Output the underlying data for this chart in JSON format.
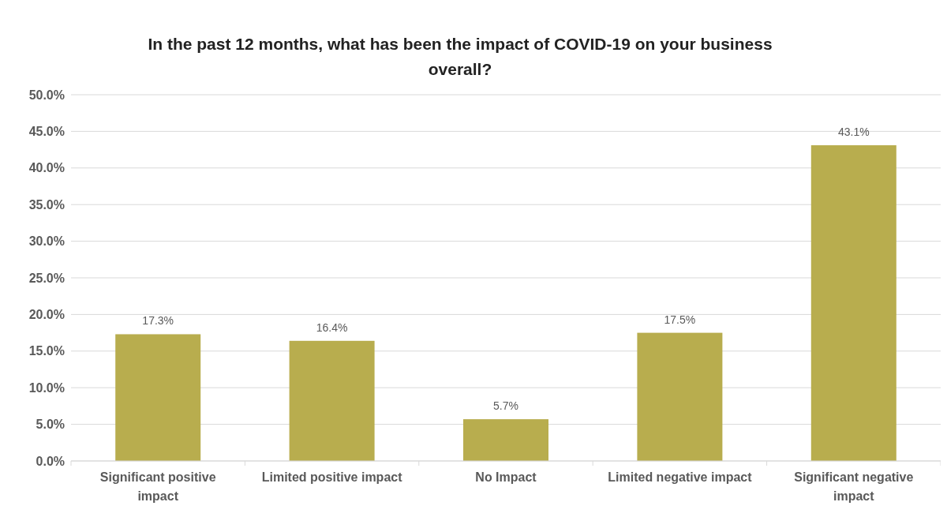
{
  "chart_data": {
    "type": "bar",
    "title": "In the past 12 months, what has been the impact of COVID-19 on your business overall?",
    "categories": [
      "Significant positive impact",
      "Limited positive impact",
      "No Impact",
      "Limited negative impact",
      "Significant negative impact"
    ],
    "values": [
      17.3,
      16.4,
      5.7,
      17.5,
      43.1
    ],
    "value_labels": [
      "17.3%",
      "16.4%",
      "5.7%",
      "17.5%",
      "43.1%"
    ],
    "color": "#b8ad4e",
    "ylim": [
      0,
      50
    ],
    "yticks": [
      {
        "value": 0,
        "label": "0.0%"
      },
      {
        "value": 5,
        "label": "5.0%"
      },
      {
        "value": 10,
        "label": "10.0%"
      },
      {
        "value": 15,
        "label": "15.0%"
      },
      {
        "value": 20,
        "label": "20.0%"
      },
      {
        "value": 25,
        "label": "25.0%"
      },
      {
        "value": 30,
        "label": "30.0%"
      },
      {
        "value": 35,
        "label": "35.0%"
      },
      {
        "value": 40,
        "label": "40.0%"
      },
      {
        "value": 45,
        "label": "45.0%"
      },
      {
        "value": 50,
        "label": "50.0%"
      }
    ],
    "grid": "y"
  }
}
